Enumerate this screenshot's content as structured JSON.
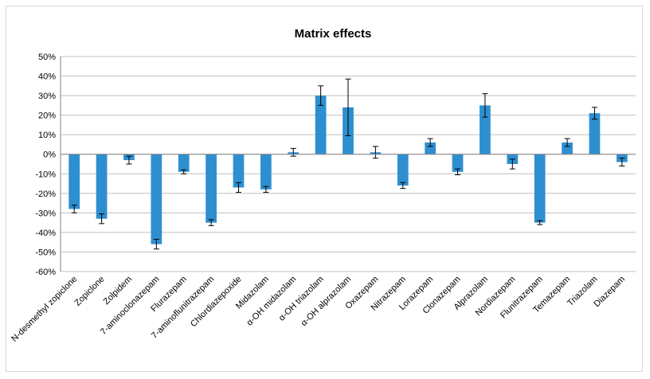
{
  "chart_data": {
    "type": "bar",
    "title": "Matrix effects",
    "xlabel": "",
    "ylabel": "",
    "ylim": [
      -60,
      50
    ],
    "y_ticks": [
      "50%",
      "40%",
      "30%",
      "20%",
      "10%",
      "0%",
      "-10%",
      "-20%",
      "-30%",
      "-40%",
      "-50%",
      "-60%"
    ],
    "y_tick_values": [
      50,
      40,
      30,
      20,
      10,
      0,
      -10,
      -20,
      -30,
      -40,
      -50,
      -60
    ],
    "grid": true,
    "legend": "none",
    "bar_color": "#2e8fd0",
    "categories": [
      "N-desmethyl zopiclone",
      "Zopiclone",
      "Zolpidem",
      "7-aminoclonazepam",
      "Flurazepam",
      "7-aminoflunitrazepam",
      "Chlordiazepoxide",
      "Midazolam",
      "α-OH midazolam",
      "α-OH triazolam",
      "α-OH alprazolam",
      "Oxazepam",
      "Nitrazepam",
      "Lorazepam",
      "Clonazepam",
      "Alprazolam",
      "Nordiazepam",
      "Flunitrazepam",
      "Temazepam",
      "Triazolam",
      "Diazepam"
    ],
    "values": [
      -28,
      -33,
      -3,
      -46,
      -9,
      -35,
      -17,
      -18,
      1,
      30,
      24,
      1,
      -16,
      6,
      -9,
      25,
      -5,
      -35,
      6,
      21,
      -4
    ],
    "errors": [
      2,
      2.5,
      2,
      2.5,
      1,
      1.5,
      2.5,
      1.5,
      2,
      5,
      14.5,
      3,
      1.5,
      2,
      1.5,
      6,
      2.5,
      1,
      2,
      3,
      2
    ]
  }
}
